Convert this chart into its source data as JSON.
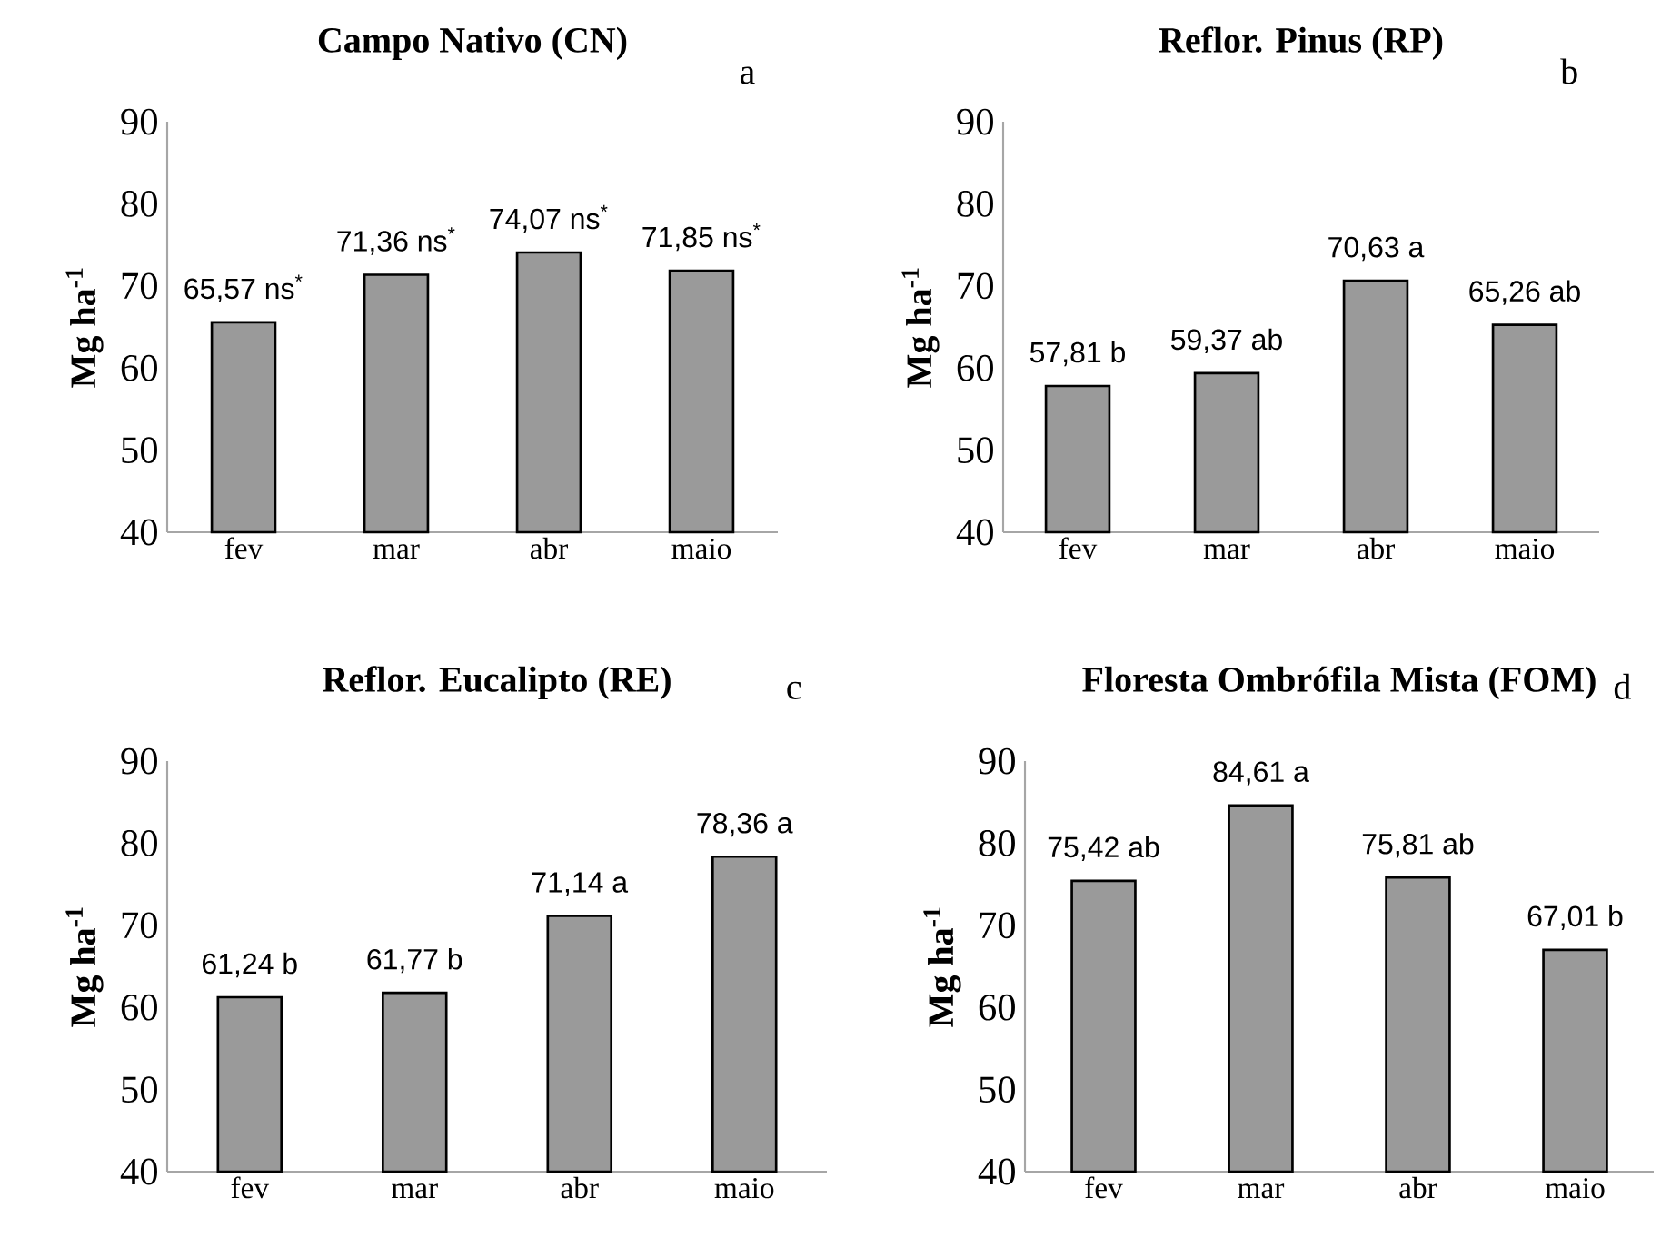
{
  "chart_data": [
    {
      "type": "bar",
      "title": "Campo Nativo (CN)",
      "ylabel": "Mg ha$^{-1}$",
      "categories": [
        "fev",
        "mar",
        "abr",
        "maio"
      ],
      "values": [
        65.57,
        71.36,
        74.07,
        71.85
      ],
      "value_labels": [
        "65,57 ns$^{*}$",
        "71,36 ns$^{*}$",
        "74,07 ns$^{*}$",
        "71,85 ns$^{*}$"
      ],
      "color": "#9a9a9a",
      "ylim": [
        40,
        90
      ],
      "yticks": [
        40,
        50,
        60,
        70,
        80,
        90
      ],
      "annotations": [
        "a"
      ]
    },
    {
      "type": "bar",
      "title": "Reflor. Pinus (RP)",
      "ylabel": "Mg ha$^{-1}$",
      "categories": [
        "fev",
        "mar",
        "abr",
        "maio"
      ],
      "values": [
        57.81,
        59.37,
        70.63,
        65.26
      ],
      "value_labels": [
        "57,81 b",
        "59,37 ab",
        "70,63 a",
        "65,26 ab"
      ],
      "color": "#9a9a9a",
      "ylim": [
        40,
        90
      ],
      "yticks": [
        40,
        50,
        60,
        70,
        80,
        90
      ],
      "annotations": [
        "b"
      ]
    },
    {
      "type": "bar",
      "title": "Reflor. Eucalipto (RE)",
      "ylabel": "Mg ha$^{-1}$",
      "categories": [
        "fev",
        "mar",
        "abr",
        "maio"
      ],
      "values": [
        61.24,
        61.77,
        71.14,
        78.36
      ],
      "value_labels": [
        "61,24 b",
        "61,77 b",
        "71,14 a",
        "78,36 a"
      ],
      "color": "#9a9a9a",
      "ylim": [
        40,
        90
      ],
      "yticks": [
        40,
        50,
        60,
        70,
        80,
        90
      ],
      "annotations": [
        "c"
      ]
    },
    {
      "type": "bar",
      "title": "Floresta Ombrófila Mista (FOM)",
      "ylabel": "Mg ha$^{-1}$",
      "categories": [
        "fev",
        "mar",
        "abr",
        "maio"
      ],
      "values": [
        75.42,
        84.61,
        75.81,
        67.01
      ],
      "value_labels": [
        "75,42 ab",
        "84,61 a",
        "75,81 ab",
        "67,01 b"
      ],
      "color": "#9a9a9a",
      "ylim": [
        40,
        90
      ],
      "yticks": [
        40,
        50,
        60,
        70,
        80,
        90
      ],
      "annotations": [
        "d"
      ]
    }
  ]
}
